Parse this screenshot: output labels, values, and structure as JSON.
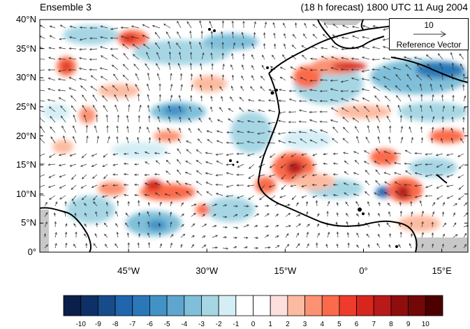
{
  "map": {
    "title_left": "Ensemble 3",
    "title_right": "(18 h forecast) 1800 UTC 11 Aug 2004",
    "lat_ticks": [
      "0°",
      "5°N",
      "10°N",
      "15°N",
      "20°N",
      "25°N",
      "30°N",
      "35°N",
      "40°N"
    ],
    "lat_values": [
      0,
      5,
      10,
      15,
      20,
      25,
      30,
      35,
      40
    ],
    "lon_ticks": [
      "45°W",
      "30°W",
      "15°W",
      "0°",
      "15°E"
    ],
    "lon_values": [
      -45,
      -30,
      -15,
      0,
      15
    ],
    "lon_range": [
      -62,
      20
    ],
    "lat_range": [
      0,
      40
    ],
    "reference_vector": {
      "magnitude": "10",
      "label": "Reference Vector"
    },
    "colors": {
      "coast": "#000000",
      "land_mask": "#c8c8c8",
      "vector": "#333333"
    }
  },
  "colorbar": {
    "labels": [
      "-10",
      "-9",
      "-8",
      "-7",
      "-6",
      "-5",
      "-4",
      "-3",
      "-2",
      "-1",
      "0",
      "1",
      "2",
      "3",
      "4",
      "5",
      "6",
      "7",
      "8",
      "9",
      "10"
    ],
    "colors": [
      "#0a1f4a",
      "#0d3166",
      "#174b8a",
      "#2166ac",
      "#2b78b8",
      "#4292c6",
      "#5ea6d0",
      "#7fbfd9",
      "#a6d6e4",
      "#d4eef5",
      "#ffffff",
      "#ffffff",
      "#fde0dd",
      "#fcbba1",
      "#fc9272",
      "#fb6a4a",
      "#ef3b2c",
      "#d7261e",
      "#b81a1a",
      "#8f0d0d",
      "#730808",
      "#4d0000"
    ]
  }
}
